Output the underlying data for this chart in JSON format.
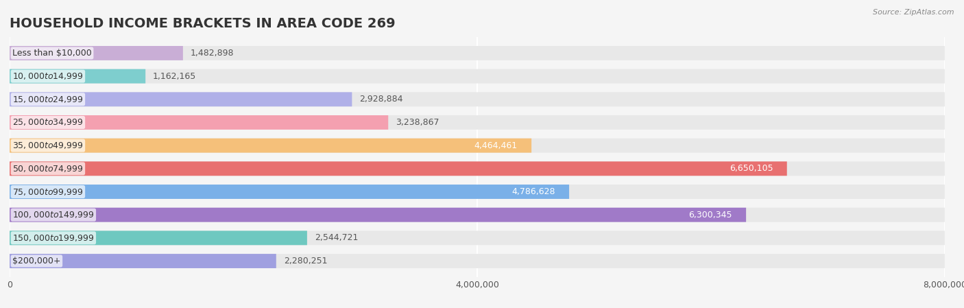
{
  "title": "HOUSEHOLD INCOME BRACKETS IN AREA CODE 269",
  "source": "Source: ZipAtlas.com",
  "categories": [
    "Less than $10,000",
    "$10,000 to $14,999",
    "$15,000 to $24,999",
    "$25,000 to $34,999",
    "$35,000 to $49,999",
    "$50,000 to $74,999",
    "$75,000 to $99,999",
    "$100,000 to $149,999",
    "$150,000 to $199,999",
    "$200,000+"
  ],
  "values": [
    1482898,
    1162165,
    2928884,
    3238867,
    4464461,
    6650105,
    4786628,
    6300345,
    2544721,
    2280251
  ],
  "bar_colors": [
    "#c9aed6",
    "#7ecece",
    "#b0b0e8",
    "#f4a0b0",
    "#f5c07a",
    "#e87070",
    "#7ab0e8",
    "#a07ac8",
    "#6ec8c0",
    "#a0a0e0"
  ],
  "value_labels": [
    "1,482,898",
    "1,162,165",
    "2,928,884",
    "3,238,867",
    "4,464,461",
    "6,650,105",
    "4,786,628",
    "6,300,345",
    "2,544,721",
    "2,280,251"
  ],
  "xlim": [
    0,
    8000000
  ],
  "xticks": [
    0,
    4000000,
    8000000
  ],
  "xticklabels": [
    "0",
    "4,000,000",
    "8,000,000"
  ],
  "background_color": "#f5f5f5",
  "bar_background_color": "#e8e8e8",
  "title_fontsize": 14,
  "label_fontsize": 9,
  "value_fontsize": 9
}
